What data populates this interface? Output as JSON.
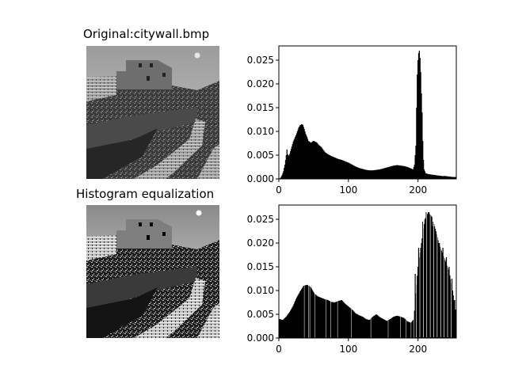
{
  "panels": {
    "original_title": "Original:citywall.bmp",
    "equalized_title": "Histogram equalization"
  },
  "chart_data": [
    {
      "type": "bar",
      "role": "histogram-original",
      "xlim": [
        0,
        255
      ],
      "ylim": [
        0,
        0.028
      ],
      "xticks": [
        0,
        100,
        200
      ],
      "yticks": [
        0.0,
        0.005,
        0.01,
        0.015,
        0.02,
        0.025
      ],
      "ytick_labels": [
        "0.000",
        "0.005",
        "0.010",
        "0.015",
        "0.020",
        "0.025"
      ],
      "xtick_labels": [
        "0",
        "100",
        "200"
      ],
      "profile": [
        [
          0,
          0
        ],
        [
          2,
          0.0003
        ],
        [
          4,
          0.0008
        ],
        [
          6,
          0.0016
        ],
        [
          8,
          0.003
        ],
        [
          10,
          0.005
        ],
        [
          11,
          0.0062
        ],
        [
          12,
          0.0052
        ],
        [
          14,
          0.0048
        ],
        [
          16,
          0.0058
        ],
        [
          18,
          0.0068
        ],
        [
          20,
          0.0078
        ],
        [
          22,
          0.0085
        ],
        [
          24,
          0.0092
        ],
        [
          26,
          0.01
        ],
        [
          28,
          0.0108
        ],
        [
          30,
          0.0113
        ],
        [
          32,
          0.0115
        ],
        [
          34,
          0.0114
        ],
        [
          36,
          0.0105
        ],
        [
          38,
          0.0095
        ],
        [
          40,
          0.0088
        ],
        [
          42,
          0.008
        ],
        [
          44,
          0.0078
        ],
        [
          46,
          0.0076
        ],
        [
          48,
          0.0079
        ],
        [
          50,
          0.008
        ],
        [
          52,
          0.0078
        ],
        [
          54,
          0.0077
        ],
        [
          56,
          0.0073
        ],
        [
          58,
          0.007
        ],
        [
          60,
          0.0068
        ],
        [
          62,
          0.0064
        ],
        [
          64,
          0.006
        ],
        [
          66,
          0.0056
        ],
        [
          68,
          0.0054
        ],
        [
          70,
          0.0052
        ],
        [
          75,
          0.0048
        ],
        [
          80,
          0.0045
        ],
        [
          85,
          0.0042
        ],
        [
          90,
          0.004
        ],
        [
          95,
          0.0037
        ],
        [
          100,
          0.0034
        ],
        [
          105,
          0.003
        ],
        [
          110,
          0.0026
        ],
        [
          115,
          0.0023
        ],
        [
          120,
          0.0021
        ],
        [
          125,
          0.0019
        ],
        [
          130,
          0.0018
        ],
        [
          135,
          0.0018
        ],
        [
          140,
          0.0019
        ],
        [
          145,
          0.002
        ],
        [
          150,
          0.0022
        ],
        [
          155,
          0.0024
        ],
        [
          160,
          0.0026
        ],
        [
          165,
          0.0028
        ],
        [
          170,
          0.0029
        ],
        [
          175,
          0.0028
        ],
        [
          180,
          0.0027
        ],
        [
          185,
          0.0025
        ],
        [
          190,
          0.0022
        ],
        [
          193,
          0.002
        ],
        [
          195,
          0.003
        ],
        [
          197,
          0.007
        ],
        [
          198,
          0.015
        ],
        [
          199,
          0.022
        ],
        [
          200,
          0.025
        ],
        [
          201,
          0.0265
        ],
        [
          202,
          0.027
        ],
        [
          203,
          0.0255
        ],
        [
          204,
          0.0225
        ],
        [
          205,
          0.018
        ],
        [
          206,
          0.014
        ],
        [
          207,
          0.008
        ],
        [
          208,
          0.004
        ],
        [
          209,
          0.002
        ],
        [
          211,
          0.0012
        ],
        [
          215,
          0.001
        ],
        [
          220,
          0.0009
        ],
        [
          225,
          0.0008
        ],
        [
          230,
          0.0007
        ],
        [
          235,
          0.0006
        ],
        [
          240,
          0.0006
        ],
        [
          245,
          0.0005
        ],
        [
          250,
          0.0004
        ],
        [
          255,
          0.0004
        ]
      ]
    },
    {
      "type": "bar",
      "role": "histogram-equalized",
      "xlim": [
        0,
        255
      ],
      "ylim": [
        0,
        0.028
      ],
      "xticks": [
        0,
        100,
        200
      ],
      "yticks": [
        0.0,
        0.005,
        0.01,
        0.015,
        0.02,
        0.025
      ],
      "ytick_labels": [
        "0.000",
        "0.005",
        "0.010",
        "0.015",
        "0.020",
        "0.025"
      ],
      "xtick_labels": [
        "0",
        "100",
        "200"
      ],
      "profile": [
        [
          0,
          0.004
        ],
        [
          5,
          0.0038
        ],
        [
          10,
          0.0045
        ],
        [
          15,
          0.0055
        ],
        [
          20,
          0.0068
        ],
        [
          25,
          0.0085
        ],
        [
          30,
          0.0098
        ],
        [
          35,
          0.011
        ],
        [
          40,
          0.0112
        ],
        [
          45,
          0.0108
        ],
        [
          50,
          0.0095
        ],
        [
          55,
          0.0088
        ],
        [
          60,
          0.0085
        ],
        [
          65,
          0.0082
        ],
        [
          70,
          0.008
        ],
        [
          75,
          0.0076
        ],
        [
          80,
          0.0075
        ],
        [
          85,
          0.0078
        ],
        [
          90,
          0.008
        ],
        [
          95,
          0.0072
        ],
        [
          100,
          0.0066
        ],
        [
          105,
          0.006
        ],
        [
          110,
          0.0052
        ],
        [
          115,
          0.0048
        ],
        [
          120,
          0.0045
        ],
        [
          125,
          0.004
        ],
        [
          130,
          0.0038
        ],
        [
          135,
          0.0045
        ],
        [
          140,
          0.005
        ],
        [
          145,
          0.0044
        ],
        [
          150,
          0.004
        ],
        [
          155,
          0.0036
        ],
        [
          160,
          0.004
        ],
        [
          165,
          0.0045
        ],
        [
          170,
          0.0047
        ],
        [
          175,
          0.0045
        ],
        [
          180,
          0.0042
        ],
        [
          185,
          0.0035
        ],
        [
          190,
          0.0032
        ],
        [
          194,
          0.004
        ],
        [
          196,
          0.0075
        ],
        [
          200,
          0.015
        ],
        [
          205,
          0.02
        ],
        [
          210,
          0.025
        ],
        [
          215,
          0.0265
        ],
        [
          220,
          0.0255
        ],
        [
          225,
          0.023
        ],
        [
          230,
          0.02
        ],
        [
          235,
          0.018
        ],
        [
          240,
          0.016
        ],
        [
          245,
          0.014
        ],
        [
          250,
          0.01
        ],
        [
          255,
          0.005
        ]
      ],
      "spikes": [
        [
          196,
          0.0135
        ],
        [
          201,
          0.019
        ],
        [
          207,
          0.0245
        ],
        [
          212,
          0.0265
        ],
        [
          216,
          0.0265
        ],
        [
          221,
          0.0235
        ],
        [
          226,
          0.0225
        ],
        [
          231,
          0.02
        ],
        [
          236,
          0.019
        ],
        [
          241,
          0.017
        ],
        [
          245,
          0.015
        ],
        [
          249,
          0.0125
        ],
        [
          253,
          0.008
        ]
      ],
      "gaps": [
        36,
        42,
        44,
        51,
        67,
        74,
        84,
        104,
        132,
        157,
        175,
        183,
        190,
        194
      ]
    }
  ]
}
